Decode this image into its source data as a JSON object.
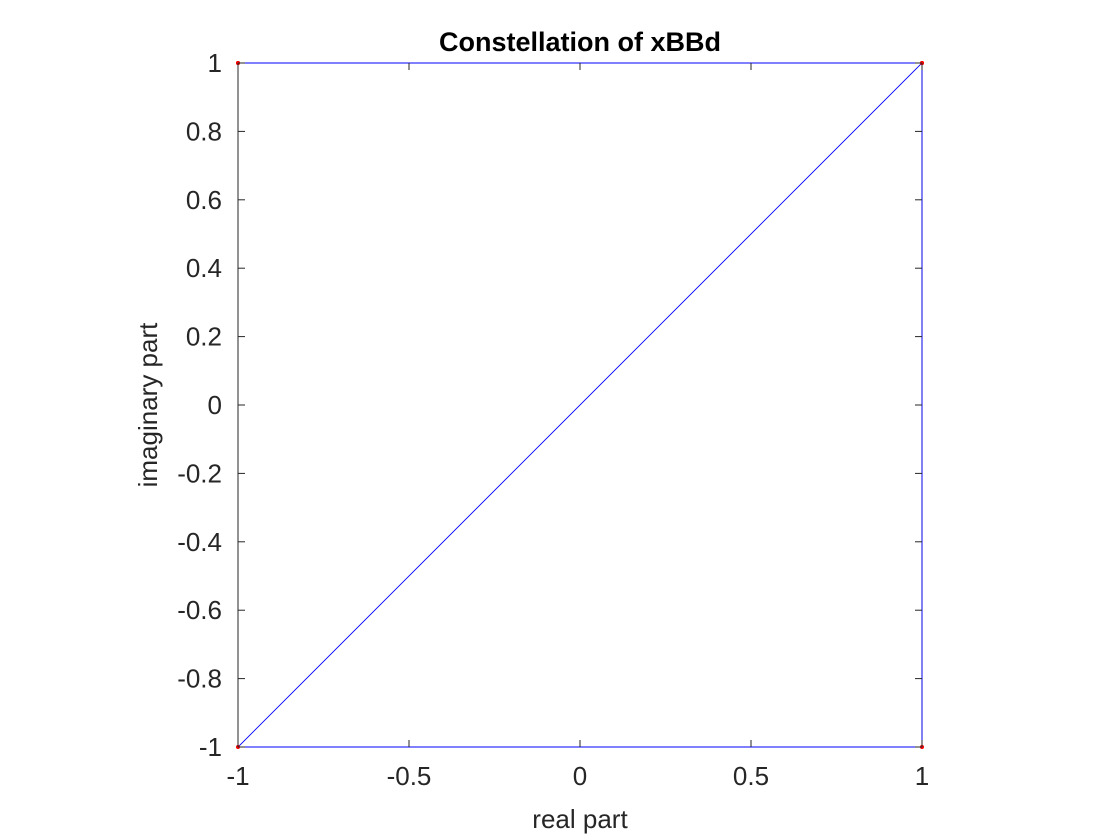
{
  "chart_data": {
    "type": "line",
    "title": "Constellation of xBBd",
    "xlabel": "real part",
    "ylabel": "imaginary part",
    "xlim": [
      -1,
      1
    ],
    "ylim": [
      -1,
      1
    ],
    "xticks": [
      -1,
      -0.5,
      0,
      0.5,
      1
    ],
    "xtick_labels": [
      "-1",
      "-0.5",
      "0",
      "0.5",
      "1"
    ],
    "yticks": [
      -1,
      -0.8,
      -0.6,
      -0.4,
      -0.2,
      0,
      0.2,
      0.4,
      0.6,
      0.8,
      1
    ],
    "ytick_labels": [
      "-1",
      "-0.8",
      "-0.6",
      "-0.4",
      "-0.2",
      "0",
      "0.2",
      "0.4",
      "0.6",
      "0.8",
      "1"
    ],
    "grid": false,
    "box": true,
    "aspect": "equal",
    "series": [
      {
        "x": [
          -1,
          1,
          1,
          -1,
          1,
          -1
        ],
        "y": [
          1,
          1,
          -1,
          -1,
          1,
          1
        ],
        "line_color": "#0000ff",
        "marker_color": "#ff0000"
      }
    ]
  }
}
